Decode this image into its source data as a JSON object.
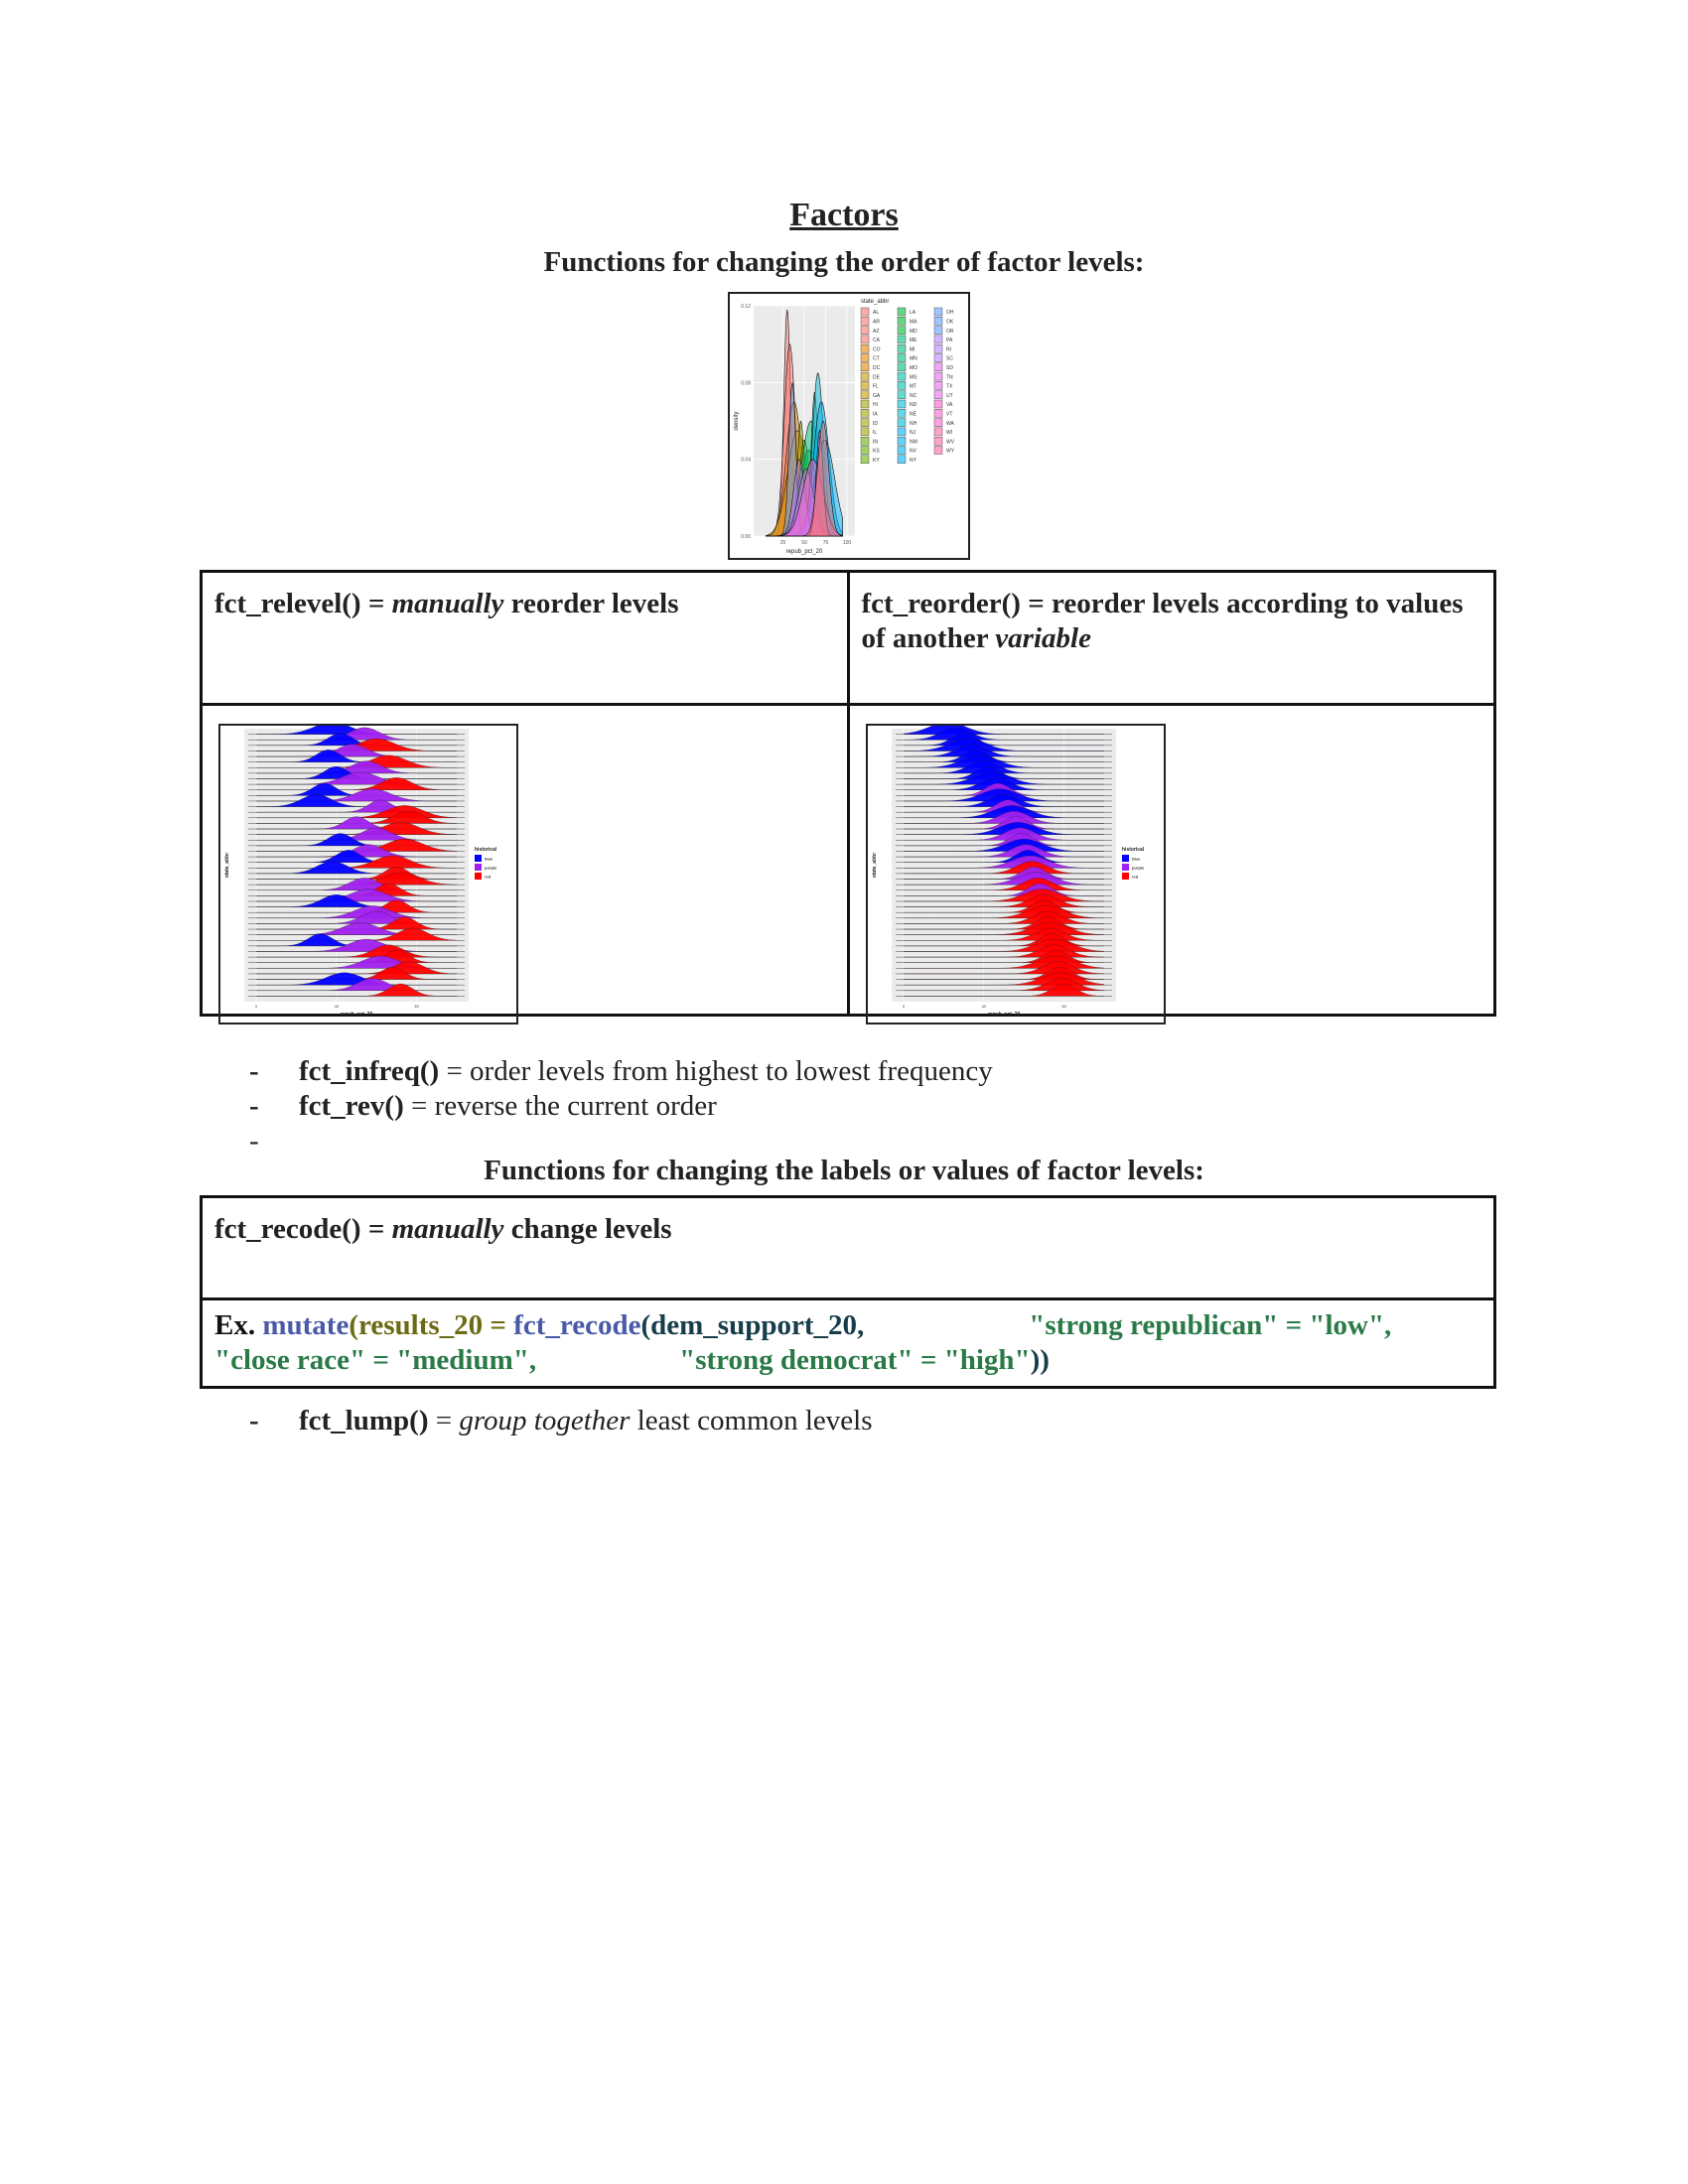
{
  "title": "Factors",
  "order_section": {
    "heading": "Functions for changing the order of factor levels:",
    "table": {
      "left": {
        "fn": "fct_relevel()",
        "eq": " = ",
        "emph": "manually",
        "rest": " reorder levels"
      },
      "right": {
        "fn": "fct_reorder()",
        "eq": " = ",
        "rest": "reorder levels according to values of another ",
        "emph": "variable"
      }
    },
    "bullets": [
      {
        "dash": "-",
        "fn": "fct_infreq()",
        "text": " = order levels from highest to lowest frequency"
      },
      {
        "dash": "-",
        "fn": "fct_rev()",
        "text": " = reverse the current order"
      },
      {
        "dash": "-",
        "fn": "",
        "text": ""
      }
    ]
  },
  "recode_section": {
    "heading": "Functions for changing the labels or values of factor levels:",
    "table": {
      "desc": {
        "fn": "fct_recode()",
        "eq": " = ",
        "emph": "manually",
        "rest": " change levels"
      },
      "example": {
        "prefix": "Ex. ",
        "mutate": "mutate",
        "open1": "(",
        "results": "results_20 = ",
        "fct_recode": "fct_recode",
        "open2": "(",
        "arg": "dem_support_20,",
        "pair1": "\"strong republican\" = \"low\",",
        "pair2": "\"close race\" = \"medium\",",
        "pair3": "\"strong democrat\" = \"high\"",
        "close": "))"
      }
    },
    "bullets": [
      {
        "dash": "-",
        "fn": "fct_lump()",
        "text_emph": "group together",
        "text_rest": " least common levels"
      }
    ]
  },
  "chart_data": [
    {
      "type": "area",
      "xlabel": "repub_pct_20",
      "ylabel": "density",
      "x_ticks": [
        "25",
        "50",
        "75",
        "100"
      ],
      "y_ticks": [
        "0.00",
        "0.04",
        "0.08",
        "0.12"
      ],
      "ylim": [
        0,
        0.12
      ],
      "legend": {
        "title": "state_abbr",
        "position": "right",
        "columns": [
          [
            "AL",
            "AR",
            "AZ",
            "CA",
            "CO",
            "CT",
            "DC",
            "DE",
            "FL",
            "GA",
            "HI",
            "IA",
            "ID",
            "IL",
            "IN",
            "KS",
            "KY"
          ],
          [
            "LA",
            "MA",
            "MD",
            "ME",
            "MI",
            "MN",
            "MO",
            "MS",
            "MT",
            "NC",
            "ND",
            "NE",
            "NH",
            "NJ",
            "NM",
            "NV",
            "NY"
          ],
          [
            "OH",
            "OK",
            "OR",
            "PA",
            "RI",
            "SC",
            "SD",
            "TN",
            "TX",
            "UT",
            "VA",
            "VT",
            "WA",
            "WI",
            "WV",
            "WY"
          ]
        ]
      }
    },
    {
      "type": "ridgeline",
      "xlabel": "repub_pct_20",
      "ylabel": "state_abbr",
      "x_ticks": [
        "0",
        "40",
        "80"
      ],
      "legend": {
        "title": "historical",
        "position": "right",
        "entries": [
          "blue",
          "purple",
          "red"
        ],
        "colors": [
          "#0000ff",
          "#a020f0",
          "#ff0000"
        ]
      },
      "ridges": [
        [
          "red",
          0.72
        ],
        [
          "purple",
          0.58
        ],
        [
          "blue",
          0.44
        ],
        [
          "red",
          0.68
        ],
        [
          "red",
          0.76
        ],
        [
          "purple",
          0.62
        ],
        [
          "red",
          0.7
        ],
        [
          "red",
          0.66
        ],
        [
          "purple",
          0.55
        ],
        [
          "blue",
          0.32
        ],
        [
          "red",
          0.78
        ],
        [
          "purple",
          0.52
        ],
        [
          "red",
          0.74
        ],
        [
          "purple",
          0.6
        ],
        [
          "purple",
          0.58
        ],
        [
          "red",
          0.7
        ],
        [
          "blue",
          0.4
        ],
        [
          "purple",
          0.56
        ],
        [
          "red",
          0.66
        ],
        [
          "purple",
          0.54
        ],
        [
          "red",
          0.72
        ],
        [
          "red",
          0.7
        ],
        [
          "blue",
          0.38
        ],
        [
          "red",
          0.68
        ],
        [
          "blue",
          0.46
        ],
        [
          "purple",
          0.56
        ],
        [
          "red",
          0.74
        ],
        [
          "blue",
          0.42
        ],
        [
          "purple",
          0.6
        ],
        [
          "red",
          0.72
        ],
        [
          "purple",
          0.5
        ],
        [
          "red",
          0.76
        ],
        [
          "red",
          0.74
        ],
        [
          "purple",
          0.62
        ],
        [
          "blue",
          0.3
        ],
        [
          "purple",
          0.58
        ],
        [
          "blue",
          0.34
        ],
        [
          "red",
          0.7
        ],
        [
          "purple",
          0.52
        ],
        [
          "blue",
          0.4
        ],
        [
          "purple",
          0.55
        ],
        [
          "red",
          0.66
        ],
        [
          "blue",
          0.36
        ],
        [
          "purple",
          0.48
        ],
        [
          "red",
          0.6
        ],
        [
          "blue",
          0.42
        ],
        [
          "purple",
          0.54
        ],
        [
          "blue",
          0.38
        ]
      ]
    },
    {
      "type": "ridgeline",
      "xlabel": "repub_pct_20",
      "ylabel": "state_abbr",
      "x_ticks": [
        "0",
        "40",
        "80"
      ],
      "legend": {
        "title": "historical",
        "position": "right",
        "entries": [
          "blue",
          "purple",
          "red"
        ],
        "colors": [
          "#0000ff",
          "#a020f0",
          "#ff0000"
        ]
      },
      "ridges": [
        [
          "red",
          0.8
        ],
        [
          "red",
          0.79
        ],
        [
          "red",
          0.78
        ],
        [
          "red",
          0.78
        ],
        [
          "red",
          0.77
        ],
        [
          "red",
          0.76
        ],
        [
          "red",
          0.76
        ],
        [
          "red",
          0.75
        ],
        [
          "red",
          0.75
        ],
        [
          "red",
          0.74
        ],
        [
          "red",
          0.73
        ],
        [
          "red",
          0.73
        ],
        [
          "red",
          0.72
        ],
        [
          "red",
          0.72
        ],
        [
          "red",
          0.71
        ],
        [
          "red",
          0.7
        ],
        [
          "red",
          0.7
        ],
        [
          "red",
          0.69
        ],
        [
          "purple",
          0.68
        ],
        [
          "red",
          0.67
        ],
        [
          "purple",
          0.66
        ],
        [
          "purple",
          0.65
        ],
        [
          "red",
          0.64
        ],
        [
          "purple",
          0.63
        ],
        [
          "blue",
          0.62
        ],
        [
          "purple",
          0.61
        ],
        [
          "blue",
          0.6
        ],
        [
          "purple",
          0.59
        ],
        [
          "purple",
          0.58
        ],
        [
          "blue",
          0.57
        ],
        [
          "purple",
          0.56
        ],
        [
          "purple",
          0.55
        ],
        [
          "blue",
          0.54
        ],
        [
          "purple",
          0.52
        ],
        [
          "blue",
          0.5
        ],
        [
          "blue",
          0.48
        ],
        [
          "purple",
          0.47
        ],
        [
          "blue",
          0.46
        ],
        [
          "blue",
          0.44
        ],
        [
          "blue",
          0.42
        ],
        [
          "blue",
          0.4
        ],
        [
          "blue",
          0.38
        ],
        [
          "blue",
          0.36
        ],
        [
          "blue",
          0.34
        ],
        [
          "blue",
          0.32
        ],
        [
          "blue",
          0.3
        ],
        [
          "blue",
          0.26
        ],
        [
          "blue",
          0.22
        ]
      ]
    }
  ]
}
